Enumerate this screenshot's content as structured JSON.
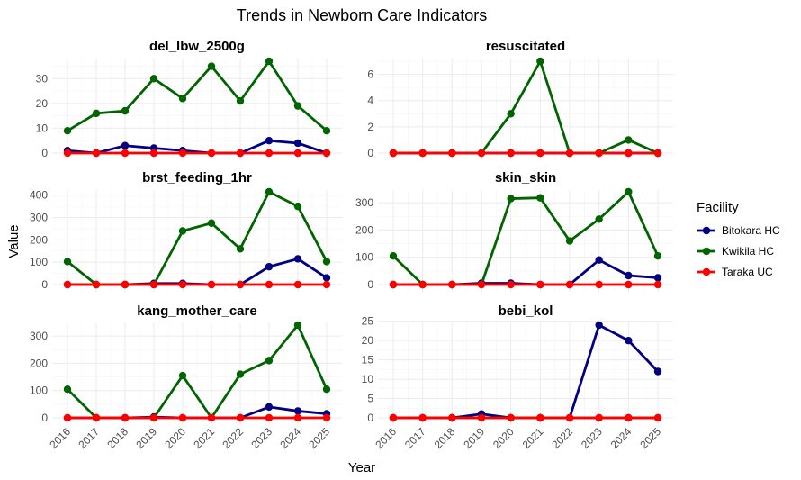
{
  "chart_data": {
    "type": "line",
    "title": "Trends in Newborn Care Indicators",
    "xlabel": "Year",
    "ylabel": "Value",
    "legend_title": "Facility",
    "legend_position": "right",
    "grid": true,
    "x": [
      2016,
      2017,
      2018,
      2019,
      2020,
      2021,
      2022,
      2023,
      2024,
      2025
    ],
    "series_styles": [
      {
        "name": "Bitokara HC",
        "color": "#000080"
      },
      {
        "name": "Kwikila HC",
        "color": "#006400"
      },
      {
        "name": "Taraka UC",
        "color": "#ff0000"
      }
    ],
    "panels": [
      {
        "title": "del_lbw_2500g",
        "yticks": [
          0,
          10,
          20,
          30
        ],
        "ylim": [
          0,
          37
        ],
        "series": [
          {
            "name": "Bitokara HC",
            "values": [
              1,
              0,
              3,
              2,
              1,
              0,
              0,
              5,
              4,
              0
            ]
          },
          {
            "name": "Kwikila HC",
            "values": [
              9,
              16,
              17,
              30,
              22,
              35,
              21,
              37,
              19,
              9
            ]
          },
          {
            "name": "Taraka UC",
            "values": [
              0,
              0,
              0,
              0,
              0,
              0,
              0,
              0,
              0,
              0
            ]
          }
        ]
      },
      {
        "title": "resuscitated",
        "yticks": [
          0,
          2,
          4,
          6
        ],
        "ylim": [
          0,
          7
        ],
        "series": [
          {
            "name": "Bitokara HC",
            "values": [
              0,
              0,
              0,
              0,
              0,
              0,
              0,
              0,
              0,
              0
            ]
          },
          {
            "name": "Kwikila HC",
            "values": [
              0,
              0,
              0,
              0,
              3,
              7,
              0,
              0,
              1,
              0
            ]
          },
          {
            "name": "Taraka UC",
            "values": [
              0,
              0,
              0,
              0,
              0,
              0,
              0,
              0,
              0,
              0
            ]
          }
        ]
      },
      {
        "title": "brst_feeding_1hr",
        "yticks": [
          0,
          100,
          200,
          300,
          400
        ],
        "ylim": [
          0,
          415
        ],
        "series": [
          {
            "name": "Bitokara HC",
            "values": [
              0,
              0,
              0,
              5,
              5,
              0,
              0,
              80,
              115,
              30
            ]
          },
          {
            "name": "Kwikila HC",
            "values": [
              103,
              0,
              0,
              0,
              240,
              275,
              160,
              415,
              350,
              103
            ]
          },
          {
            "name": "Taraka UC",
            "values": [
              0,
              0,
              0,
              0,
              0,
              0,
              0,
              0,
              0,
              0
            ]
          }
        ]
      },
      {
        "title": "skin_skin",
        "yticks": [
          0,
          100,
          200,
          300
        ],
        "ylim": [
          0,
          340
        ],
        "series": [
          {
            "name": "Bitokara HC",
            "values": [
              0,
              0,
              0,
              5,
              5,
              0,
              0,
              90,
              33,
              25
            ]
          },
          {
            "name": "Kwikila HC",
            "values": [
              105,
              0,
              0,
              0,
              315,
              318,
              160,
              240,
              340,
              105
            ]
          },
          {
            "name": "Taraka UC",
            "values": [
              0,
              0,
              0,
              0,
              0,
              0,
              0,
              0,
              0,
              0
            ]
          }
        ]
      },
      {
        "title": "kang_mother_care",
        "yticks": [
          0,
          100,
          200,
          300
        ],
        "ylim": [
          0,
          340
        ],
        "series": [
          {
            "name": "Bitokara HC",
            "values": [
              0,
              0,
              0,
              3,
              0,
              0,
              0,
              40,
              25,
              15
            ]
          },
          {
            "name": "Kwikila HC",
            "values": [
              105,
              0,
              0,
              0,
              155,
              0,
              160,
              210,
              340,
              105
            ]
          },
          {
            "name": "Taraka UC",
            "values": [
              0,
              0,
              0,
              0,
              0,
              0,
              0,
              0,
              0,
              0
            ]
          }
        ]
      },
      {
        "title": "bebi_kol",
        "yticks": [
          0,
          5,
          10,
          15,
          20,
          25
        ],
        "ylim": [
          0,
          24
        ],
        "series": [
          {
            "name": "Bitokara HC",
            "values": [
              0,
              0,
              0,
              1,
              0,
              0,
              0,
              24,
              20,
              12
            ]
          },
          {
            "name": "Kwikila HC",
            "values": [
              0,
              0,
              0,
              0,
              0,
              0,
              0,
              0,
              0,
              0
            ]
          },
          {
            "name": "Taraka UC",
            "values": [
              0,
              0,
              0,
              0,
              0,
              0,
              0,
              0,
              0,
              0
            ]
          }
        ]
      }
    ]
  }
}
